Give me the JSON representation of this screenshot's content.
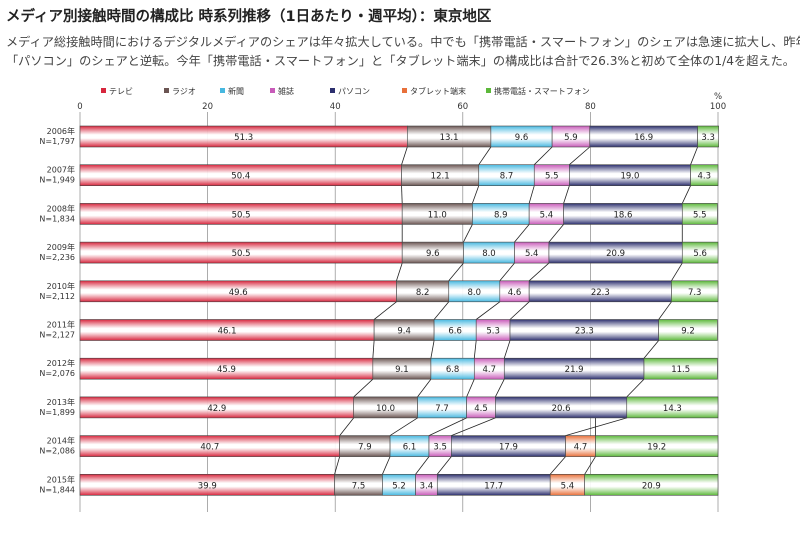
{
  "page": {
    "title": "メディア別接触時間の構成比 時系列推移（1日あたり・週平均）：東京地区",
    "desc_line1": "メディア総接触時間におけるデジタルメディアのシェアは年々拡大している。中でも「携帯電話・スマートフォン」のシェアは急速に拡大し、昨年",
    "desc_line2": "「パソコン」のシェアと逆転。今年「携帯電話・スマートフォン」と「タブレット端末」の構成比は合計で26.3%と初めて全体の1/4を超えた。"
  },
  "chart_data": {
    "type": "bar",
    "orientation": "horizontal",
    "stacked": true,
    "x_unit": "%",
    "xlim": [
      0,
      100
    ],
    "xticks": [
      0,
      20,
      40,
      60,
      80,
      100
    ],
    "grid": true,
    "legend_position": "top",
    "categories": [
      {
        "year": "2006年",
        "n": "N=1,797"
      },
      {
        "year": "2007年",
        "n": "N=1,949"
      },
      {
        "year": "2008年",
        "n": "N=1,834"
      },
      {
        "year": "2009年",
        "n": "N=2,236"
      },
      {
        "year": "2010年",
        "n": "N=2,112"
      },
      {
        "year": "2011年",
        "n": "N=2,127"
      },
      {
        "year": "2012年",
        "n": "N=2,076"
      },
      {
        "year": "2013年",
        "n": "N=1,899"
      },
      {
        "year": "2014年",
        "n": "N=2,086"
      },
      {
        "year": "2015年",
        "n": "N=1,844"
      }
    ],
    "series": [
      {
        "name": "テレビ",
        "color": "#d7263d",
        "text": "#222222",
        "values": [
          51.3,
          50.4,
          50.5,
          50.5,
          49.6,
          46.1,
          45.9,
          42.9,
          40.7,
          39.9
        ]
      },
      {
        "name": "ラジオ",
        "color": "#6b5552",
        "text": "#222222",
        "values": [
          13.1,
          12.1,
          11.0,
          9.6,
          8.2,
          9.4,
          9.1,
          10.0,
          7.9,
          7.5
        ]
      },
      {
        "name": "新聞",
        "color": "#47b8e0",
        "text": "#222222",
        "values": [
          9.6,
          8.7,
          8.9,
          8.0,
          8.0,
          6.6,
          6.8,
          7.7,
          6.1,
          5.2
        ]
      },
      {
        "name": "雑誌",
        "color": "#c85bb9",
        "text": "#222222",
        "values": [
          5.9,
          5.5,
          5.4,
          5.4,
          4.6,
          5.3,
          4.7,
          4.5,
          3.5,
          3.4
        ]
      },
      {
        "name": "パソコン",
        "color": "#2c2f6e",
        "text": "#222222",
        "values": [
          16.9,
          19.0,
          18.6,
          20.9,
          22.3,
          23.3,
          21.9,
          20.6,
          17.9,
          17.7
        ]
      },
      {
        "name": "タブレット端末",
        "color": "#e8703a",
        "text": "#222222",
        "values": [
          null,
          null,
          null,
          null,
          null,
          null,
          null,
          null,
          4.7,
          5.4
        ]
      },
      {
        "name": "携帯電話・スマートフォン",
        "color": "#5cb83a",
        "text": "#222222",
        "values": [
          3.3,
          4.3,
          5.5,
          5.6,
          7.3,
          9.2,
          11.5,
          14.3,
          19.2,
          20.9
        ]
      }
    ]
  }
}
